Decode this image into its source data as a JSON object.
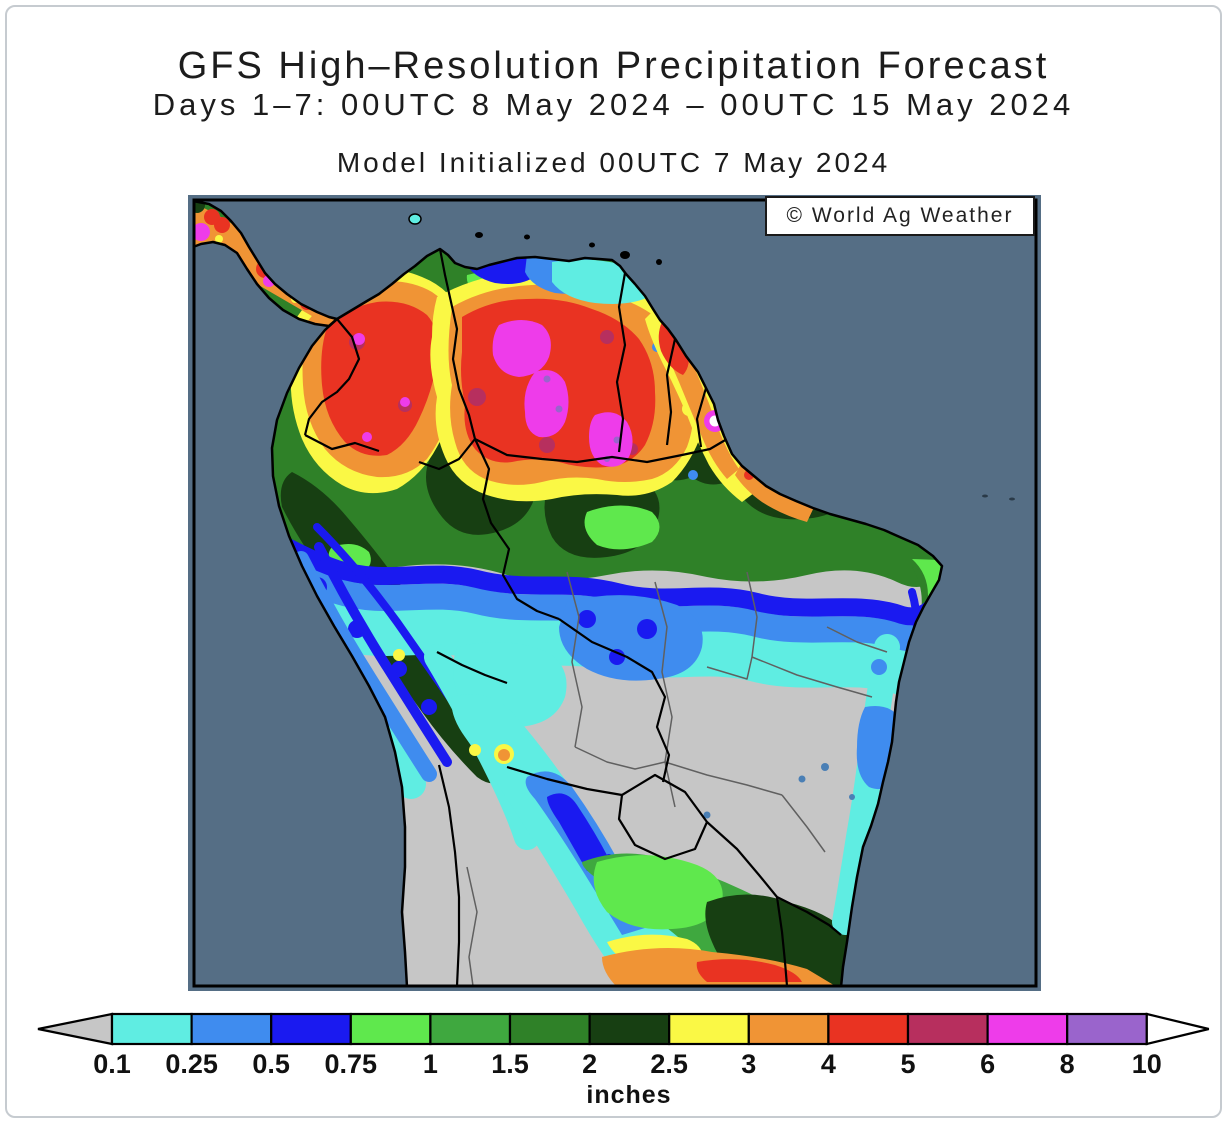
{
  "header": {
    "title": "GFS High–Resolution Precipitation Forecast",
    "subtitle": "Days 1–7: 00UTC 8 May 2024 – 00UTC 15 May 2024",
    "model_init": "Model Initialized 00UTC 7 May 2024"
  },
  "map": {
    "watermark": "© World Ag Weather",
    "region": "South America",
    "ocean_color": "#556E85",
    "land_color": "#C6C6C6",
    "coast_color": "#000000"
  },
  "legend": {
    "unit_label": "inches",
    "tick_labels": [
      "0.1",
      "0.25",
      "0.5",
      "0.75",
      "1",
      "1.5",
      "2",
      "2.5",
      "3",
      "4",
      "5",
      "6",
      "8",
      "10"
    ],
    "segment_colors": [
      "#5FEDE2",
      "#3F8CEF",
      "#1A1AF0",
      "#5FE84D",
      "#3FA83F",
      "#2F8128",
      "#173F12",
      "#FAF845",
      "#F09435",
      "#E93322",
      "#B72F5E",
      "#EE3CEA",
      "#9A64CC"
    ],
    "below_min_color": "#C6C6C6",
    "above_max_color": "#FFFFFF"
  }
}
